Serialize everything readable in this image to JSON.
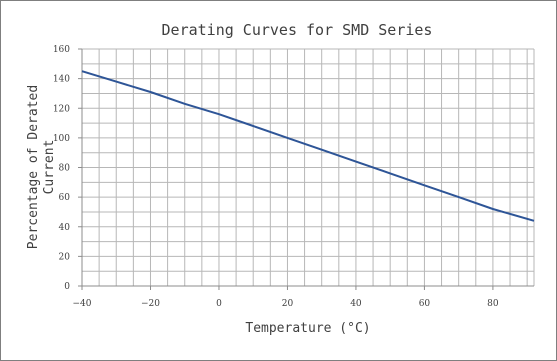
{
  "chart_data": {
    "type": "line",
    "title": "Derating Curves for SMD Series",
    "xlabel": "Temperature (°C)",
    "ylabel_lines": [
      "Percentage of Derated",
      "Current"
    ],
    "xlim": [
      -40,
      92
    ],
    "ylim": [
      0,
      160
    ],
    "x_ticks": [
      -40,
      -20,
      0,
      20,
      40,
      60,
      80
    ],
    "y_ticks": [
      0,
      20,
      40,
      60,
      80,
      100,
      120,
      140,
      160
    ],
    "x_tick_labels": [
      "−40",
      "−20",
      "0",
      "20",
      "40",
      "60",
      "80"
    ],
    "y_tick_labels": [
      "0",
      "20",
      "40",
      "60",
      "80",
      "100",
      "120",
      "140",
      "160"
    ],
    "grid": true,
    "legend": "none",
    "series": [
      {
        "color": "#2e5597",
        "points": [
          {
            "x": -40,
            "y": 145
          },
          {
            "x": -30,
            "y": 138
          },
          {
            "x": -20,
            "y": 131
          },
          {
            "x": -10,
            "y": 123
          },
          {
            "x": 0,
            "y": 116
          },
          {
            "x": 10,
            "y": 108
          },
          {
            "x": 20,
            "y": 100
          },
          {
            "x": 30,
            "y": 92
          },
          {
            "x": 40,
            "y": 84
          },
          {
            "x": 50,
            "y": 76
          },
          {
            "x": 60,
            "y": 68
          },
          {
            "x": 70,
            "y": 60
          },
          {
            "x": 80,
            "y": 52
          },
          {
            "x": 92,
            "y": 44
          }
        ]
      }
    ],
    "colors": {
      "grid": "#b7b7b7",
      "axis": "#8c8c8c",
      "line": "#2e5597",
      "text": "#404040"
    }
  }
}
